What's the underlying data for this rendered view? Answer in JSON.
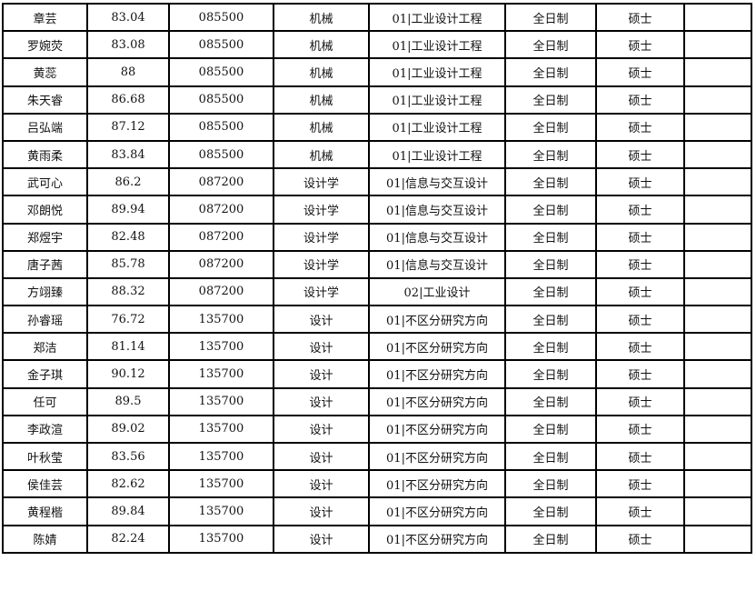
{
  "rows": [
    [
      "章芸",
      "83.04",
      "085500",
      "机械",
      "01|工业设计工程",
      "全日制",
      "硕士",
      ""
    ],
    [
      "罗婉荧",
      "83.08",
      "085500",
      "机械",
      "01|工业设计工程",
      "全日制",
      "硕士",
      ""
    ],
    [
      "黄蕊",
      "88",
      "085500",
      "机械",
      "01|工业设计工程",
      "全日制",
      "硕士",
      ""
    ],
    [
      "朱天睿",
      "86.68",
      "085500",
      "机械",
      "01|工业设计工程",
      "全日制",
      "硕士",
      ""
    ],
    [
      "吕弘端",
      "87.12",
      "085500",
      "机械",
      "01|工业设计工程",
      "全日制",
      "硕士",
      ""
    ],
    [
      "黄雨柔",
      "83.84",
      "085500",
      "机械",
      "01|工业设计工程",
      "全日制",
      "硕士",
      ""
    ],
    [
      "武可心",
      "86.2",
      "087200",
      "设计学",
      "01|信息与交互设计",
      "全日制",
      "硕士",
      ""
    ],
    [
      "邓朗悦",
      "89.94",
      "087200",
      "设计学",
      "01|信息与交互设计",
      "全日制",
      "硕士",
      ""
    ],
    [
      "郑煜宇",
      "82.48",
      "087200",
      "设计学",
      "01|信息与交互设计",
      "全日制",
      "硕士",
      ""
    ],
    [
      "唐子茜",
      "85.78",
      "087200",
      "设计学",
      "01|信息与交互设计",
      "全日制",
      "硕士",
      ""
    ],
    [
      "方翊臻",
      "88.32",
      "087200",
      "设计学",
      "02|工业设计",
      "全日制",
      "硕士",
      ""
    ],
    [
      "孙睿瑶",
      "76.72",
      "135700",
      "设计",
      "01|不区分研究方向",
      "全日制",
      "硕士",
      ""
    ],
    [
      "郑洁",
      "81.14",
      "135700",
      "设计",
      "01|不区分研究方向",
      "全日制",
      "硕士",
      ""
    ],
    [
      "金子琪",
      "90.12",
      "135700",
      "设计",
      "01|不区分研究方向",
      "全日制",
      "硕士",
      ""
    ],
    [
      "任可",
      "89.5",
      "135700",
      "设计",
      "01|不区分研究方向",
      "全日制",
      "硕士",
      ""
    ],
    [
      "李政渲",
      "89.02",
      "135700",
      "设计",
      "01|不区分研究方向",
      "全日制",
      "硕士",
      ""
    ],
    [
      "叶秋莹",
      "83.56",
      "135700",
      "设计",
      "01|不区分研究方向",
      "全日制",
      "硕士",
      ""
    ],
    [
      "侯佳芸",
      "82.62",
      "135700",
      "设计",
      "01|不区分研究方向",
      "全日制",
      "硕士",
      ""
    ],
    [
      "黄程楷",
      "89.84",
      "135700",
      "设计",
      "01|不区分研究方向",
      "全日制",
      "硕士",
      ""
    ],
    [
      "陈婧",
      "82.24",
      "135700",
      "设计",
      "01|不区分研究方向",
      "全日制",
      "硕士",
      ""
    ]
  ]
}
